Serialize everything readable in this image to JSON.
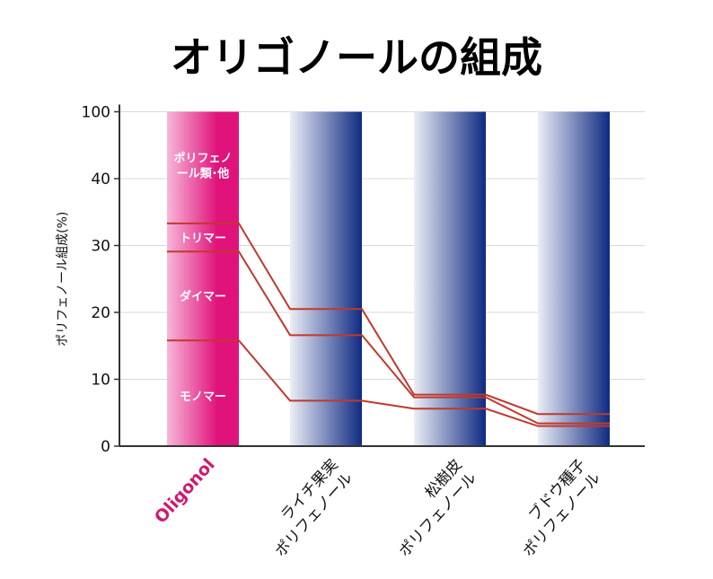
{
  "chart_data": {
    "type": "bar",
    "title": "オリゴノールの組成",
    "ylabel": "ポリフェノール組成(%)",
    "xlabel": "",
    "ylim": [
      0,
      100
    ],
    "yticks": [
      "0",
      "10",
      "20",
      "30",
      "40",
      "100"
    ],
    "y_scale_note": "axis break: tick label 100 drawn at the 50 gridline position",
    "grid": true,
    "categories": [
      {
        "label": "Oligonol",
        "lines": [
          "Oligonol"
        ],
        "color": "#d0186f"
      },
      {
        "label": "ライチ果実ポリフェノール",
        "lines": [
          "ライチ果実",
          "ポリフェノール"
        ],
        "color": "#111111"
      },
      {
        "label": "松樹皮ポリフェノール",
        "lines": [
          "松樹皮",
          "ポリフェノール"
        ],
        "color": "#111111"
      },
      {
        "label": "ブドウ種子ポリフェノール",
        "lines": [
          "ブドウ種子",
          "ポリフェノール"
        ],
        "color": "#111111"
      }
    ],
    "bar_values": [
      100,
      100,
      100,
      100
    ],
    "boundaries": [
      {
        "name": "トリマー上限",
        "values": [
          33.3,
          20.5,
          7.7,
          4.8
        ]
      },
      {
        "name": "ダイマー上限",
        "values": [
          29.1,
          16.6,
          7.3,
          3.4
        ]
      },
      {
        "name": "モノマー上限",
        "values": [
          15.8,
          6.8,
          5.6,
          3.0
        ]
      }
    ],
    "segment_labels": [
      {
        "lines": [
          "ポリフェノ",
          "ール類･他"
        ],
        "y": 42
      },
      {
        "lines": [
          "トリマー"
        ],
        "y": 31.2
      },
      {
        "lines": [
          "ダイマー"
        ],
        "y": 22.5
      },
      {
        "lines": [
          "モノマー"
        ],
        "y": 7.5
      }
    ],
    "colors": {
      "oligonol_bar": "#e0137a",
      "oligonol_bar_light": "#f7b7d9",
      "other_bar_dark": "#0f2a82",
      "other_bar_light": "#eceef6",
      "boundary_line": "#c0392b",
      "grid": "#d9d9d9"
    }
  }
}
